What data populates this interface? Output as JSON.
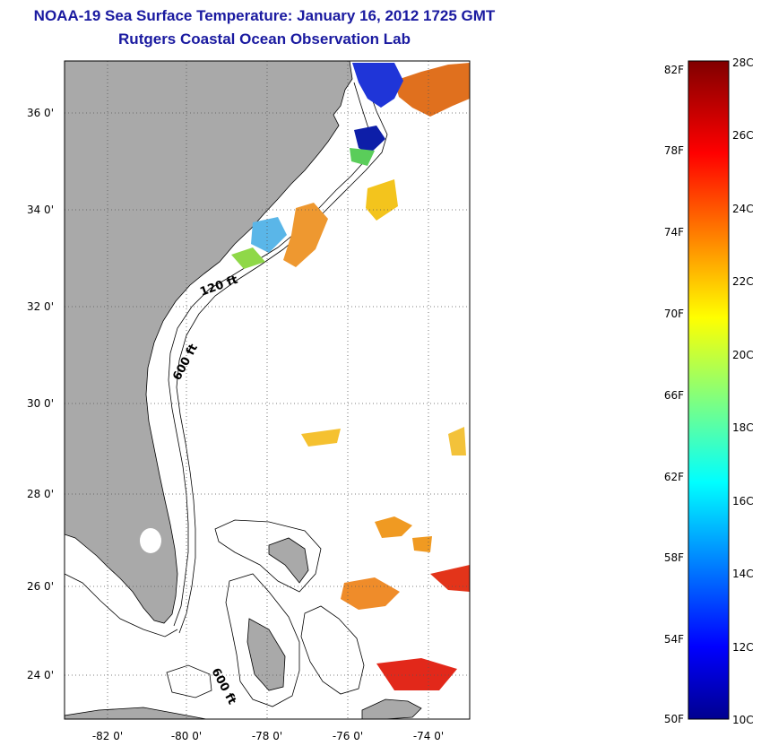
{
  "title": {
    "line1": "NOAA-19 Sea Surface Temperature:  January 16, 2012 1725 GMT",
    "line2": "Rutgers Coastal Ocean Observation Lab"
  },
  "map": {
    "lat_labels": [
      "36 0'",
      "34 0'",
      "32 0'",
      "30 0'",
      "28 0'",
      "26 0'",
      "24 0'"
    ],
    "lon_labels": [
      "-82 0'",
      "-80 0'",
      "-78 0'",
      "-76 0'",
      "-74 0'"
    ],
    "contour_labels": [
      "120 ft",
      "600 ft",
      "600 ft"
    ],
    "colors": {
      "land": "#a9a9a9",
      "ocean": "#ffffff",
      "grid": "#555555"
    }
  },
  "colorbar": {
    "min_c": 10,
    "max_c": 28,
    "fahrenheit_labels": [
      "82F",
      "78F",
      "74F",
      "70F",
      "66F",
      "62F",
      "58F",
      "54F",
      "50F"
    ],
    "celsius_labels": [
      "28C",
      "26C",
      "24C",
      "22C",
      "20C",
      "18C",
      "16C",
      "14C",
      "12C",
      "10C"
    ]
  }
}
